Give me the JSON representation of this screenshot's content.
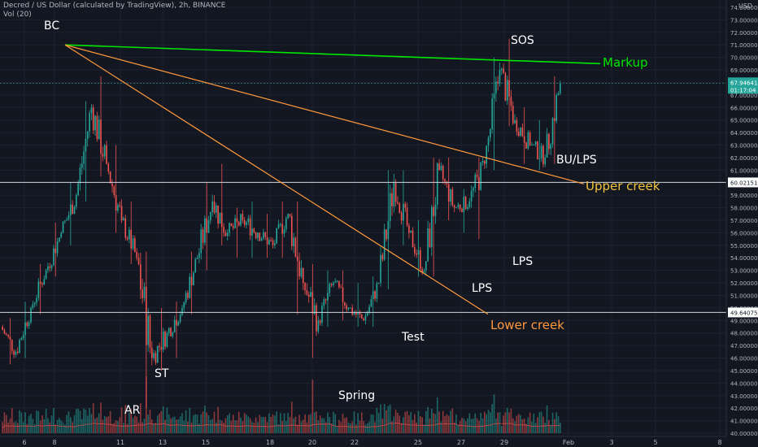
{
  "header": {
    "title": "Decred / US Dollar (calculated by TradingView), 2h, BINANCE",
    "volume_label": "Vol (20)"
  },
  "price_axis": {
    "currency": "USD",
    "ticks": [
      "74.000000",
      "73.000000",
      "72.000000",
      "71.000000",
      "70.000000",
      "69.000000",
      "68.000000",
      "67.000000",
      "66.000000",
      "65.000000",
      "64.000000",
      "63.000000",
      "62.000000",
      "61.000000",
      "60.000000",
      "59.000000",
      "58.000000",
      "57.000000",
      "56.000000",
      "55.000000",
      "54.000000",
      "53.000000",
      "52.000000",
      "51.000000",
      "50.000000",
      "49.000000",
      "48.000000",
      "47.000000",
      "46.000000",
      "45.000000",
      "44.000000",
      "43.000000",
      "42.000000",
      "41.000000",
      "40.000000"
    ],
    "current_price": "67.946413",
    "countdown": "01:17:04",
    "upper_level_label": "60.021519",
    "lower_level_label": "49.640755"
  },
  "time_axis": {
    "ticks": [
      "6",
      "8",
      "11",
      "13",
      "15",
      "18",
      "20",
      "22",
      "25",
      "27",
      "29",
      "Feb",
      "3",
      "5",
      "8"
    ]
  },
  "chart_data": {
    "type": "candlestick",
    "symbol": "Decred / US Dollar",
    "interval": "2h",
    "exchange": "BINANCE",
    "ylim": [
      40,
      74.5
    ],
    "candles_ohlc_approx": [
      [
        48.5,
        49.2,
        45.5,
        46.5
      ],
      [
        46.5,
        50.5,
        46.0,
        50.0
      ],
      [
        50.0,
        53.5,
        49.5,
        53.0
      ],
      [
        53.0,
        56.8,
        52.5,
        56.0
      ],
      [
        56.0,
        60.0,
        55.0,
        59.0
      ],
      [
        59.0,
        66.5,
        58.5,
        66.0
      ],
      [
        66.0,
        68.5,
        60.5,
        61.5
      ],
      [
        61.5,
        63.0,
        56.0,
        57.0
      ],
      [
        57.0,
        58.5,
        53.5,
        54.0
      ],
      [
        54.0,
        54.5,
        42.0,
        46.0
      ],
      [
        46.0,
        50.0,
        45.0,
        48.0
      ],
      [
        48.0,
        50.5,
        46.0,
        50.0
      ],
      [
        50.0,
        54.5,
        49.5,
        54.0
      ],
      [
        54.0,
        60.0,
        53.0,
        58.5
      ],
      [
        58.5,
        61.5,
        55.0,
        56.0
      ],
      [
        56.0,
        58.0,
        54.0,
        57.0
      ],
      [
        57.0,
        58.5,
        54.0,
        56.0
      ],
      [
        56.0,
        57.5,
        54.0,
        55.0
      ],
      [
        55.0,
        58.5,
        54.0,
        57.5
      ],
      [
        57.5,
        58.5,
        49.5,
        52.0
      ],
      [
        52.0,
        53.5,
        46.0,
        49.0
      ],
      [
        49.0,
        53.0,
        48.5,
        52.0
      ],
      [
        52.0,
        53.0,
        49.0,
        50.0
      ],
      [
        50.0,
        52.0,
        48.5,
        49.0
      ],
      [
        49.0,
        52.5,
        48.5,
        52.0
      ],
      [
        52.0,
        61.0,
        51.5,
        60.0
      ],
      [
        60.0,
        61.0,
        55.0,
        56.0
      ],
      [
        56.0,
        57.0,
        52.5,
        53.0
      ],
      [
        53.0,
        62.0,
        52.5,
        61.0
      ],
      [
        61.0,
        62.0,
        57.0,
        58.0
      ],
      [
        58.0,
        59.5,
        56.0,
        58.5
      ],
      [
        58.5,
        62.0,
        55.5,
        61.5
      ],
      [
        61.5,
        70.0,
        61.0,
        69.0
      ],
      [
        69.0,
        71.5,
        64.5,
        65.0
      ],
      [
        65.0,
        66.0,
        61.5,
        63.0
      ],
      [
        63.0,
        65.0,
        61.0,
        62.0
      ],
      [
        62.0,
        68.5,
        61.5,
        67.9
      ]
    ],
    "horizontal_levels": [
      {
        "name": "upper",
        "value": 60.021519
      },
      {
        "name": "lower",
        "value": 49.640755
      }
    ],
    "colors": {
      "up": "#26a69a",
      "down": "#ef5350",
      "markup": "#00e600",
      "trend": "#ff9a3c",
      "creek": "#f2c23b",
      "background": "#131722",
      "grid": "#1e2230",
      "axis_text": "#b2b5be",
      "level_line": "#d1d4dc"
    },
    "annotations": [
      {
        "text": "BC",
        "color": "#ffffff"
      },
      {
        "text": "SOS",
        "color": "#ffffff"
      },
      {
        "text": "Markup",
        "color": "#00e600"
      },
      {
        "text": "BU/LPS",
        "color": "#ffffff"
      },
      {
        "text": "Upper creek",
        "color": "#f2c23b"
      },
      {
        "text": "LPS",
        "color": "#ffffff"
      },
      {
        "text": "LPS",
        "color": "#ffffff"
      },
      {
        "text": "Lower creek",
        "color": "#ff9a3c"
      },
      {
        "text": "Test",
        "color": "#ffffff"
      },
      {
        "text": "Spring",
        "color": "#ffffff"
      },
      {
        "text": "ST",
        "color": "#ffffff"
      },
      {
        "text": "AR",
        "color": "#ffffff"
      }
    ]
  }
}
